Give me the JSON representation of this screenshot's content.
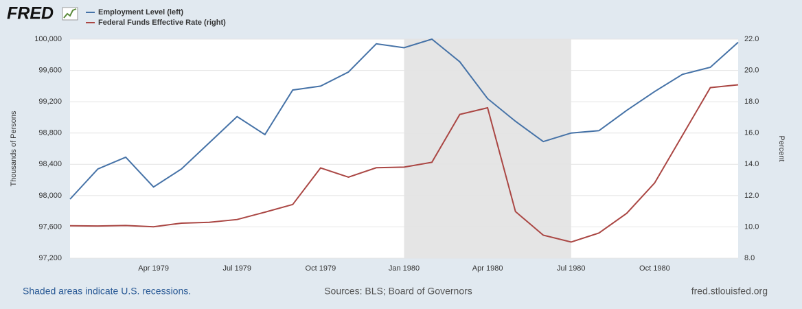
{
  "header": {
    "logo": "FRED"
  },
  "chart_data": {
    "type": "line",
    "categories": [
      null,
      null,
      null,
      "Apr 1979",
      null,
      null,
      "Jul 1979",
      null,
      null,
      "Oct 1979",
      null,
      null,
      "Jan 1980",
      null,
      null,
      "Apr 1980",
      null,
      null,
      "Jul 1980",
      null,
      null,
      "Oct 1980",
      null,
      null,
      null
    ],
    "series": [
      {
        "name": "Employment Level (left)",
        "color": "#4572a7",
        "axis": "y",
        "values": [
          97955,
          98340,
          98490,
          98110,
          98340,
          98675,
          99010,
          98780,
          99350,
          99400,
          99580,
          99940,
          99890,
          100000,
          99710,
          99240,
          98950,
          98690,
          98800,
          98830,
          99090,
          99330,
          99550,
          99640,
          99960
        ]
      },
      {
        "name": "Federal Funds Effective Rate (right)",
        "color": "#aa4643",
        "axis": "y2",
        "values": [
          10.07,
          10.06,
          10.09,
          10.01,
          10.24,
          10.29,
          10.47,
          10.94,
          11.43,
          13.77,
          13.18,
          13.78,
          13.82,
          14.13,
          17.19,
          17.61,
          10.98,
          9.47,
          9.03,
          9.61,
          10.87,
          12.81,
          15.85,
          18.9,
          19.08
        ]
      }
    ],
    "ylabel": "Thousands of Persons",
    "y2label": "Percent",
    "ylim": [
      97200,
      100000
    ],
    "yticks": [
      {
        "value": 97200,
        "label": "97,200"
      },
      {
        "value": 97600,
        "label": "97,600"
      },
      {
        "value": 98000,
        "label": "98,000"
      },
      {
        "value": 98400,
        "label": "98,400"
      },
      {
        "value": 98800,
        "label": "98,800"
      },
      {
        "value": 99200,
        "label": "99,200"
      },
      {
        "value": 99600,
        "label": "99,600"
      },
      {
        "value": 100000,
        "label": "100,000"
      }
    ],
    "y2lim": [
      8,
      22
    ],
    "y2ticks": [
      {
        "value": 8,
        "label": "8.0"
      },
      {
        "value": 10,
        "label": "10.0"
      },
      {
        "value": 12,
        "label": "12.0"
      },
      {
        "value": 14,
        "label": "14.0"
      },
      {
        "value": 16,
        "label": "16.0"
      },
      {
        "value": 18,
        "label": "18.0"
      },
      {
        "value": 20,
        "label": "20.0"
      },
      {
        "value": 22,
        "label": "22.0"
      }
    ],
    "grid": true,
    "shaded_range": [
      12,
      18
    ],
    "shade_color": "#e5e5e5"
  },
  "footer": {
    "note": "Shaded areas indicate U.S. recessions.",
    "sources": "Sources: BLS; Board of Governors",
    "site": "fred.stlouisfed.org"
  }
}
